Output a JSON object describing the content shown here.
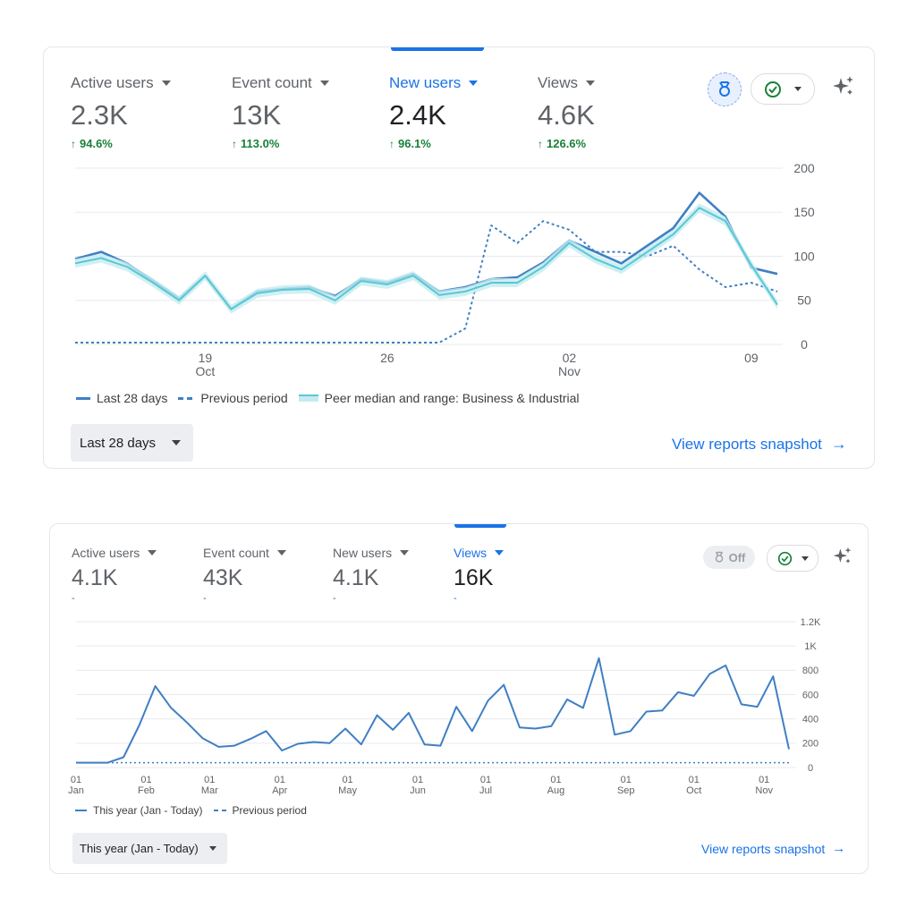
{
  "panels": [
    {
      "metrics": [
        {
          "label": "Active users",
          "value": "2.3K",
          "change": "94.6%"
        },
        {
          "label": "Event count",
          "value": "13K",
          "change": "113.0%"
        },
        {
          "label": "New users",
          "value": "2.4K",
          "change": "96.1%"
        },
        {
          "label": "Views",
          "value": "4.6K",
          "change": "126.6%"
        }
      ],
      "selected_metric": "New users",
      "legend": [
        "Last 28 days",
        "Previous period",
        "Peer median and range: Business & Industrial"
      ],
      "date_range": "Last 28 days",
      "snapshot_link": "View reports snapshot",
      "icons": [
        "benchmark-icon",
        "check-circle-icon",
        "sparkle-icon"
      ]
    },
    {
      "metrics": [
        {
          "label": "Active users",
          "value": "4.1K",
          "change": "-"
        },
        {
          "label": "Event count",
          "value": "43K",
          "change": "-"
        },
        {
          "label": "New users",
          "value": "4.1K",
          "change": "-"
        },
        {
          "label": "Views",
          "value": "16K",
          "change": "-"
        }
      ],
      "selected_metric": "Views",
      "benchmark_toggle": "Off",
      "legend": [
        "This year (Jan - Today)",
        "Previous period"
      ],
      "date_range": "This year (Jan - Today)",
      "snapshot_link": "View reports snapshot",
      "icons": [
        "benchmark-icon",
        "check-circle-icon",
        "sparkle-icon"
      ]
    }
  ],
  "colors": {
    "primary": "#1a73e8",
    "line": "#3f7fc4",
    "peer": "#5bc8d4",
    "peer_band": "#c4ecf0",
    "positive": "#188038",
    "grid": "#e8eaed"
  },
  "chart_data": [
    {
      "type": "line",
      "ylim": [
        0,
        200
      ],
      "yticks": [
        "0",
        "50",
        "100",
        "150",
        "200"
      ],
      "xticks": [
        {
          "index": 5,
          "day": "19",
          "month": "Oct"
        },
        {
          "index": 12,
          "day": "26",
          "month": ""
        },
        {
          "index": 19,
          "day": "02",
          "month": "Nov"
        },
        {
          "index": 26,
          "day": "09",
          "month": ""
        }
      ],
      "grid": true,
      "series": [
        {
          "name": "Last 28 days",
          "style": "solid",
          "values": [
            97,
            105,
            92,
            72,
            52,
            78,
            40,
            60,
            63,
            65,
            55,
            74,
            70,
            80,
            60,
            65,
            74,
            76,
            93,
            118,
            105,
            92,
            112,
            132,
            172,
            145,
            87,
            80
          ]
        },
        {
          "name": "Previous period",
          "style": "dashed",
          "values": [
            2,
            2,
            2,
            2,
            2,
            2,
            2,
            2,
            2,
            2,
            2,
            2,
            2,
            2,
            2,
            18,
            135,
            115,
            140,
            130,
            105,
            105,
            100,
            112,
            85,
            65,
            70,
            60
          ]
        },
        {
          "name": "Peer median and range: Business & Industrial",
          "style": "peer",
          "values": [
            92,
            98,
            88,
            70,
            50,
            78,
            40,
            58,
            62,
            63,
            50,
            72,
            68,
            78,
            56,
            60,
            70,
            70,
            88,
            115,
            97,
            85,
            105,
            125,
            155,
            140,
            90,
            45
          ]
        }
      ]
    },
    {
      "type": "line",
      "ylim": [
        0,
        1200
      ],
      "yticks": [
        "0",
        "200",
        "400",
        "600",
        "800",
        "1K",
        "1.2K"
      ],
      "xticks": [
        {
          "index": 0,
          "day": "01",
          "month": "Jan"
        },
        {
          "index": 4.43,
          "day": "01",
          "month": "Feb"
        },
        {
          "index": 8.43,
          "day": "01",
          "month": "Mar"
        },
        {
          "index": 12.86,
          "day": "01",
          "month": "Apr"
        },
        {
          "index": 17.14,
          "day": "01",
          "month": "May"
        },
        {
          "index": 21.57,
          "day": "01",
          "month": "Jun"
        },
        {
          "index": 25.86,
          "day": "01",
          "month": "Jul"
        },
        {
          "index": 30.29,
          "day": "01",
          "month": "Aug"
        },
        {
          "index": 34.71,
          "day": "01",
          "month": "Sep"
        },
        {
          "index": 39.0,
          "day": "01",
          "month": "Oct"
        },
        {
          "index": 43.43,
          "day": "01",
          "month": "Nov"
        }
      ],
      "grid": true,
      "series": [
        {
          "name": "This year (Jan - Today)",
          "style": "solid",
          "values": [
            40,
            40,
            40,
            85,
            350,
            670,
            490,
            370,
            240,
            170,
            180,
            235,
            300,
            140,
            195,
            210,
            200,
            320,
            190,
            430,
            310,
            450,
            190,
            180,
            500,
            300,
            550,
            680,
            330,
            320,
            340,
            560,
            490,
            900,
            270,
            300,
            460,
            470,
            620,
            590,
            770,
            840,
            520,
            500,
            750,
            150
          ]
        },
        {
          "name": "Previous period",
          "style": "dashed",
          "values": [
            40,
            40,
            40,
            40,
            40,
            40,
            40,
            40,
            40,
            40,
            40,
            40,
            40,
            40,
            40,
            40,
            40,
            40,
            40,
            40,
            40,
            40,
            40,
            40,
            40,
            40,
            40,
            40,
            40,
            40,
            40,
            40,
            40,
            40,
            40,
            40,
            40,
            40,
            40,
            40,
            40,
            40,
            40,
            40,
            40,
            40
          ]
        }
      ]
    }
  ]
}
